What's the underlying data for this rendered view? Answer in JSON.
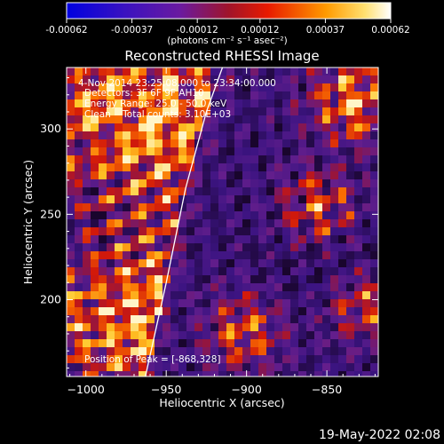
{
  "chart_data": {
    "type": "heatmap",
    "title": "Reconstructed RHESSI Image",
    "xlabel": "Heliocentric X (arcsec)",
    "ylabel": "Heliocentric Y (arcsec)",
    "xlim": [
      -1012,
      -818
    ],
    "ylim": [
      155,
      336
    ],
    "x_ticks": [
      -1000,
      -950,
      -900,
      -850
    ],
    "x_tick_labels": [
      "−1000",
      "−950",
      "−900",
      "−850"
    ],
    "y_ticks": [
      200,
      250,
      300
    ],
    "y_tick_labels": [
      "200",
      "250",
      "300"
    ],
    "colorbar": {
      "range": [
        -0.00062,
        0.00062
      ],
      "ticks": [
        -0.00062,
        -0.00037,
        -0.00012,
        0.00012,
        0.00037,
        0.00062
      ],
      "tick_labels": [
        "-0.00062",
        "-0.00037",
        "-0.00012",
        "0.00012",
        "0.00037",
        "0.00062"
      ],
      "unit_label": "(photons cm⁻² s⁻¹ asec⁻²)"
    },
    "annotations": [
      "4-Nov-2014 23:25:08.000 to 23:34:00.000",
      "Detectors: 3F 6F 9F AH10",
      "Energy Range: 25.0 - 50.0 keV",
      "Clean    Total counts: 3.10E+03"
    ],
    "peak_label": "Position of Peak = [-868,328]",
    "limb_curve": [
      [
        -963,
        155
      ],
      [
        -950,
        210
      ],
      [
        -938,
        265
      ],
      [
        -925,
        310
      ],
      [
        -915,
        336
      ]
    ]
  },
  "footer": {
    "date": "19-May-2022 02:08"
  },
  "colors": {
    "background": "#000000",
    "axes": "#ffffff",
    "limb": "#ffffff"
  }
}
